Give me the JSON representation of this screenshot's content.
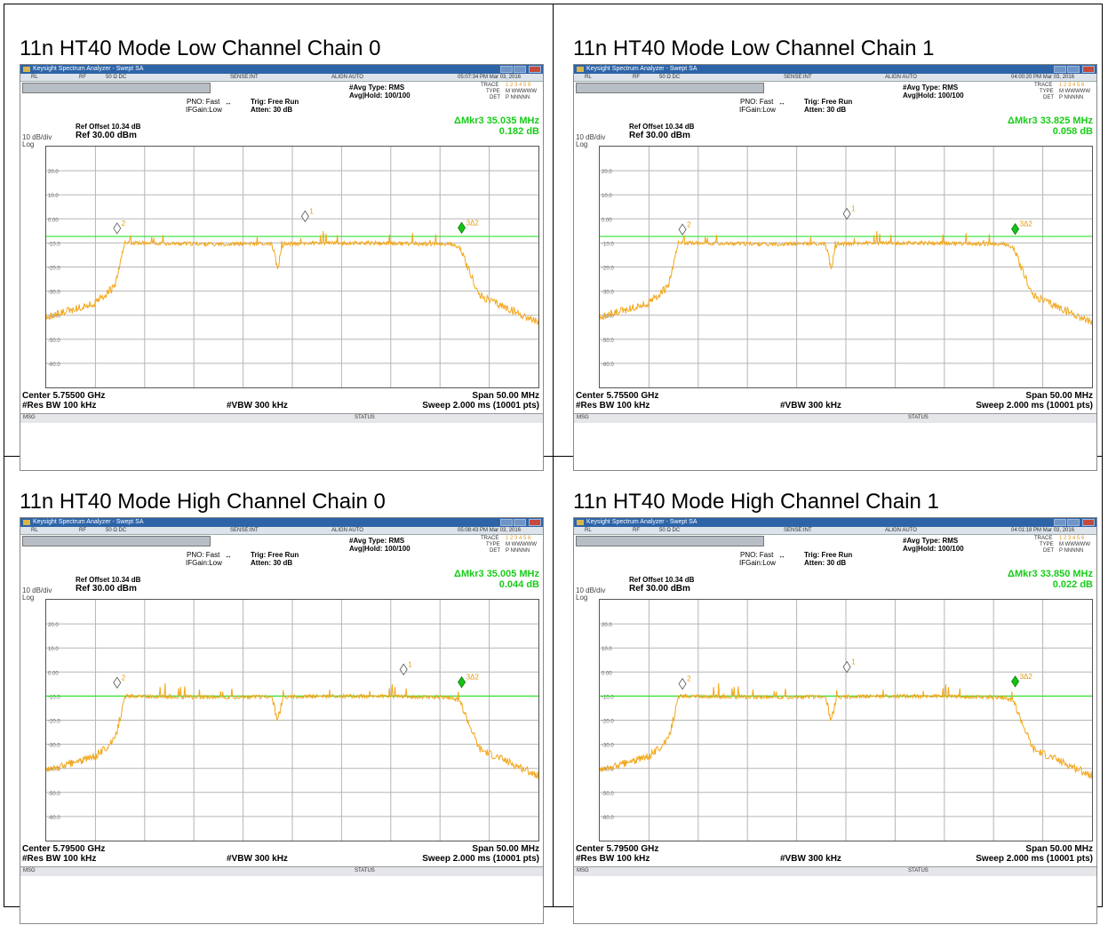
{
  "window": {
    "app_title": "Keysight Spectrum Analyzer - Swept SA",
    "menu": [
      "RL",
      "RF",
      "50 Ω  DC",
      "SENSE:INT",
      "ALIGN AUTO"
    ],
    "trace_label": "TRACE",
    "trace_nums": "1 2 3 4 5 6",
    "type_label": "TYPE",
    "type_val": "M WWWWW",
    "det_label": "DET",
    "det_val": "P NNNNN",
    "status_label": "STATUS",
    "msg_label": "MSG"
  },
  "colors": {
    "trace": "#f2a71c",
    "threshold": "#33e333",
    "delta_text": "#19cc19",
    "marker_delta": "#14c414"
  },
  "icons": [
    "keysight-app-icon",
    "minimize-icon",
    "maximize-icon",
    "close-icon",
    "marker-diamond-icon"
  ],
  "panels": [
    {
      "title": "11n HT40 Mode Low Channel Chain 0",
      "timestamp": "05:07:34 PM Mar 03, 2016",
      "pno": "PNO: Fast",
      "ifgain": "IFGain:Low",
      "trig": "Trig: Free Run",
      "atten": "Atten: 30 dB",
      "avg_type": "#Avg Type: RMS",
      "avg_hold": "Avg|Hold: 100/100",
      "delta_mkr": "ΔMkr3 35.035 MHz",
      "delta_val": "0.182 dB",
      "ref_offset": "Ref Offset 10.34 dB",
      "ref_level": "Ref 30.00 dBm",
      "scale": "10 dB/div",
      "log": "Log",
      "center": "Center 5.75500 GHz",
      "span": "Span 50.00 MHz",
      "res_bw": "#Res BW 100 kHz",
      "vbw": "#VBW 300 kHz",
      "sweep": "Sweep  2.000 ms (10001 pts)"
    },
    {
      "title": "11n HT40 Mode Low Channel Chain 1",
      "timestamp": "04:00:20 PM Mar 03, 2016",
      "pno": "PNO: Fast",
      "ifgain": "IFGain:Low",
      "trig": "Trig: Free Run",
      "atten": "Atten: 30 dB",
      "avg_type": "#Avg Type: RMS",
      "avg_hold": "Avg|Hold: 100/100",
      "delta_mkr": "ΔMkr3 33.825 MHz",
      "delta_val": "0.058 dB",
      "ref_offset": "Ref Offset 10.34 dB",
      "ref_level": "Ref 30.00 dBm",
      "scale": "10 dB/div",
      "log": "Log",
      "center": "Center 5.75500 GHz",
      "span": "Span 50.00 MHz",
      "res_bw": "#Res BW 100 kHz",
      "vbw": "#VBW 300 kHz",
      "sweep": "Sweep  2.000 ms (10001 pts)"
    },
    {
      "title": "11n HT40 Mode High Channel Chain 0",
      "timestamp": "05:08:43 PM Mar 03, 2016",
      "pno": "PNO: Fast",
      "ifgain": "IFGain:Low",
      "trig": "Trig: Free Run",
      "atten": "Atten: 30 dB",
      "avg_type": "#Avg Type: RMS",
      "avg_hold": "Avg|Hold: 100/100",
      "delta_mkr": "ΔMkr3 35.005 MHz",
      "delta_val": "0.044 dB",
      "ref_offset": "Ref Offset 10.34 dB",
      "ref_level": "Ref 30.00 dBm",
      "scale": "10 dB/div",
      "log": "Log",
      "center": "Center 5.79500 GHz",
      "span": "Span 50.00 MHz",
      "res_bw": "#Res BW 100 kHz",
      "vbw": "#VBW 300 kHz",
      "sweep": "Sweep  2.000 ms (10001 pts)"
    },
    {
      "title": "11n HT40 Mode High Channel Chain 1",
      "timestamp": "04:01:18 PM Mar 03, 2016",
      "pno": "PNO: Fast",
      "ifgain": "IFGain:Low",
      "trig": "Trig: Free Run",
      "atten": "Atten: 30 dB",
      "avg_type": "#Avg Type: RMS",
      "avg_hold": "Avg|Hold: 100/100",
      "delta_mkr": "ΔMkr3 33.850 MHz",
      "delta_val": "0.022 dB",
      "ref_offset": "Ref Offset 10.34 dB",
      "ref_level": "Ref 30.00 dBm",
      "scale": "10 dB/div",
      "log": "Log",
      "center": "Center 5.79500 GHz",
      "span": "Span 50.00 MHz",
      "res_bw": "#Res BW 100 kHz",
      "vbw": "#VBW 300 kHz",
      "sweep": "Sweep  2.000 ms (10001 pts)"
    }
  ],
  "chart_data": [
    {
      "type": "line",
      "title": "11n HT40 Mode Low Channel Chain 0",
      "x_unit": "MHz",
      "y_unit": "dBm",
      "x_range": [
        5730,
        5780
      ],
      "ylim": [
        -70,
        30
      ],
      "grid": true,
      "legend": "none",
      "y_ticks": [
        "20.0",
        "10.0",
        "0.00",
        "-10.0",
        "-20.0",
        "-30.0",
        "-40.0",
        "-50.0",
        "-60.0"
      ],
      "series": [
        {
          "x": [
            5730,
            5735,
            5737,
            5738,
            5747,
            5748,
            5762,
            5771,
            5772,
            5774,
            5780
          ],
          "y": [
            -41,
            -35,
            -28,
            -10,
            -10.5,
            -10.5,
            -10,
            -10.5,
            -12,
            -32,
            -43
          ]
        }
      ],
      "dip": {
        "x": 5753.5,
        "y": -20
      },
      "threshold_y": -7.3,
      "markers": [
        {
          "label": "1",
          "x": 5756.3,
          "y": -1.5,
          "kind": "normal"
        },
        {
          "label": "2",
          "x": 5737.2,
          "y": -6.5,
          "kind": "normal"
        },
        {
          "label": "3Δ2",
          "x": 5772.2,
          "y": -6.3,
          "kind": "delta"
        }
      ]
    },
    {
      "type": "line",
      "title": "11n HT40 Mode Low Channel Chain 1",
      "x_unit": "MHz",
      "y_unit": "dBm",
      "x_range": [
        5730,
        5780
      ],
      "ylim": [
        -70,
        30
      ],
      "grid": true,
      "legend": "none",
      "y_ticks": [
        "20.0",
        "10.0",
        "0.00",
        "-10.0",
        "-20.0",
        "-30.0",
        "-40.0",
        "-50.0",
        "-60.0"
      ],
      "series": [
        {
          "x": [
            5730,
            5735,
            5737,
            5738,
            5747,
            5748,
            5762,
            5771,
            5772,
            5774,
            5780
          ],
          "y": [
            -41,
            -35,
            -28,
            -10,
            -10.5,
            -10.5,
            -10,
            -10.5,
            -12,
            -32,
            -43
          ]
        }
      ],
      "dip": {
        "x": 5753.5,
        "y": -20
      },
      "threshold_y": -7.3,
      "markers": [
        {
          "label": "1",
          "x": 5755.1,
          "y": -0.5,
          "kind": "normal"
        },
        {
          "label": "2",
          "x": 5738.4,
          "y": -7.0,
          "kind": "normal"
        },
        {
          "label": "3Δ2",
          "x": 5772.2,
          "y": -6.8,
          "kind": "delta"
        }
      ]
    },
    {
      "type": "line",
      "title": "11n HT40 Mode High Channel Chain 0",
      "x_unit": "MHz",
      "y_unit": "dBm",
      "x_range": [
        5770,
        5820
      ],
      "ylim": [
        -70,
        30
      ],
      "grid": true,
      "legend": "none",
      "y_ticks": [
        "20.0",
        "10.0",
        "0.00",
        "-10.0",
        "-20.0",
        "-30.0",
        "-40.0",
        "-50.0",
        "-60.0"
      ],
      "series": [
        {
          "x": [
            5770,
            5775,
            5777,
            5778,
            5787,
            5788,
            5802,
            5811,
            5812,
            5814,
            5820
          ],
          "y": [
            -41,
            -35,
            -28,
            -10,
            -10.5,
            -10.5,
            -10,
            -10.5,
            -12,
            -32,
            -43
          ]
        }
      ],
      "dip": {
        "x": 5793.5,
        "y": -20
      },
      "threshold_y": -10.0,
      "markers": [
        {
          "label": "1",
          "x": 5806.3,
          "y": -1.5,
          "kind": "normal"
        },
        {
          "label": "2",
          "x": 5777.2,
          "y": -7.0,
          "kind": "normal"
        },
        {
          "label": "3Δ2",
          "x": 5812.2,
          "y": -6.8,
          "kind": "delta"
        }
      ]
    },
    {
      "type": "line",
      "title": "11n HT40 Mode High Channel Chain 1",
      "x_unit": "MHz",
      "y_unit": "dBm",
      "x_range": [
        5770,
        5820
      ],
      "ylim": [
        -70,
        30
      ],
      "grid": true,
      "legend": "none",
      "y_ticks": [
        "20.0",
        "10.0",
        "0.00",
        "-10.0",
        "-20.0",
        "-30.0",
        "-40.0",
        "-50.0",
        "-60.0"
      ],
      "series": [
        {
          "x": [
            5770,
            5775,
            5777,
            5778,
            5787,
            5788,
            5802,
            5811,
            5812,
            5814,
            5820
          ],
          "y": [
            -41,
            -35,
            -28,
            -10,
            -10.5,
            -10.5,
            -10,
            -10.5,
            -12,
            -32,
            -43
          ]
        }
      ],
      "dip": {
        "x": 5793.5,
        "y": -20
      },
      "threshold_y": -10.0,
      "markers": [
        {
          "label": "1",
          "x": 5795.1,
          "y": -0.5,
          "kind": "normal"
        },
        {
          "label": "2",
          "x": 5778.4,
          "y": -7.5,
          "kind": "normal"
        },
        {
          "label": "3Δ2",
          "x": 5812.2,
          "y": -6.5,
          "kind": "delta"
        }
      ]
    }
  ]
}
